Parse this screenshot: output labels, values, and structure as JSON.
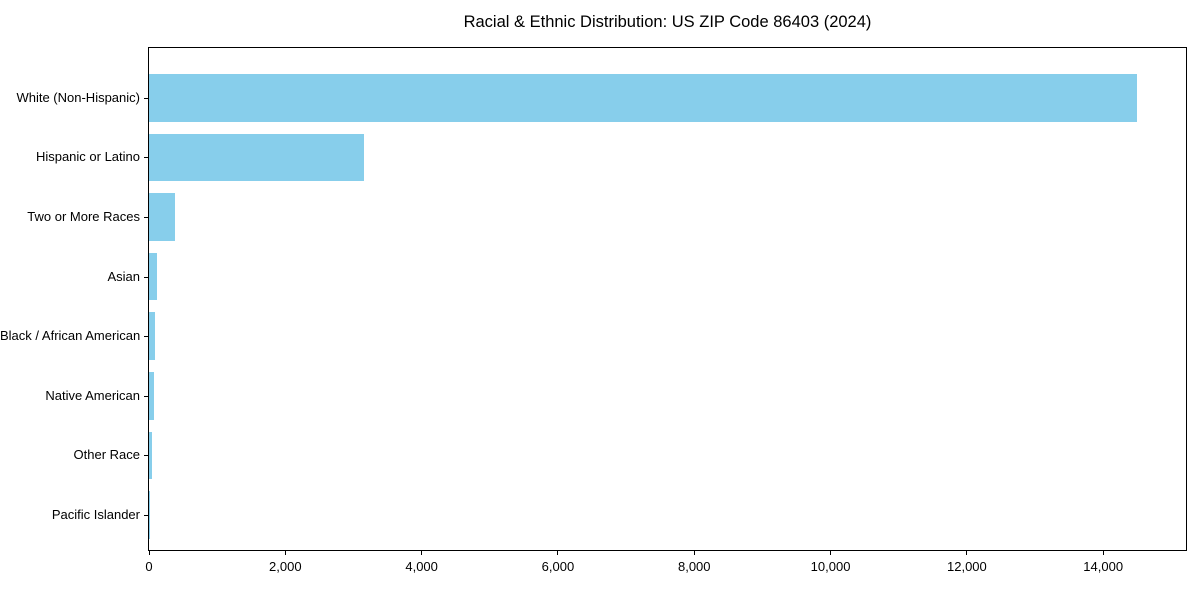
{
  "chart_data": {
    "type": "bar",
    "orientation": "horizontal",
    "title": "Racial & Ethnic Distribution: US ZIP Code 86403 (2024)",
    "categories": [
      "White (Non-Hispanic)",
      "Hispanic or Latino",
      "Two or More Races",
      "Asian",
      "Black / African American",
      "Native American",
      "Other Race",
      "Pacific Islander"
    ],
    "values": [
      14490,
      3150,
      380,
      120,
      95,
      75,
      45,
      10
    ],
    "xlabel": "",
    "ylabel": "",
    "xlim": [
      0,
      15215
    ],
    "x_ticks": [
      {
        "value": 0,
        "label": "0"
      },
      {
        "value": 2000,
        "label": "2,000"
      },
      {
        "value": 4000,
        "label": "4,000"
      },
      {
        "value": 6000,
        "label": "6,000"
      },
      {
        "value": 8000,
        "label": "8,000"
      },
      {
        "value": 10000,
        "label": "10,000"
      },
      {
        "value": 12000,
        "label": "12,000"
      },
      {
        "value": 14000,
        "label": "14,000"
      }
    ],
    "bar_color": "#87CEEB",
    "frame_color": "#000000",
    "background_color": "#ffffff",
    "grid": false,
    "legend": null
  }
}
